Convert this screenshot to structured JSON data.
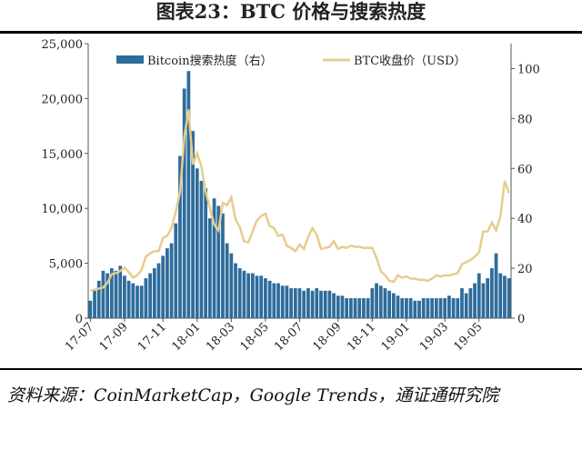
{
  "chart_data": {
    "type": "combo",
    "title": "图表23：BTC 价格与搜索热度",
    "source": "资料来源：CoinMarketCap，Google Trends，通证通研究院",
    "categories": [
      "17-07",
      null,
      null,
      null,
      null,
      null,
      null,
      null,
      "17-09",
      null,
      null,
      null,
      null,
      null,
      null,
      null,
      null,
      "17-11",
      null,
      null,
      null,
      null,
      null,
      null,
      null,
      "18-01",
      null,
      null,
      null,
      null,
      null,
      null,
      null,
      "18-03",
      null,
      null,
      null,
      null,
      null,
      null,
      null,
      "18-05",
      null,
      null,
      null,
      null,
      null,
      null,
      null,
      "18-07",
      null,
      null,
      null,
      null,
      null,
      null,
      null,
      null,
      "18-09",
      null,
      null,
      null,
      null,
      null,
      null,
      null,
      "18-11",
      null,
      null,
      null,
      null,
      null,
      null,
      null,
      "19-01",
      null,
      null,
      null,
      null,
      null,
      null,
      null,
      null,
      "19-03",
      null,
      null,
      null,
      null,
      null,
      null,
      null,
      "19-05",
      null,
      null,
      null,
      null,
      null,
      null,
      null
    ],
    "series": [
      {
        "name": "Bitcoin搜索热度（右）",
        "type": "bar",
        "axis": "y2",
        "color": "#2e6c9c",
        "values": [
          7,
          11,
          15,
          19,
          18,
          20,
          19,
          21,
          17,
          15,
          14,
          13,
          13,
          16,
          18,
          20,
          22,
          25,
          28,
          30,
          38,
          65,
          92,
          99,
          75,
          60,
          55,
          52,
          40,
          48,
          45,
          42,
          30,
          26,
          22,
          20,
          19,
          18,
          18,
          17,
          17,
          16,
          15,
          14,
          14,
          13,
          13,
          12,
          12,
          12,
          11,
          12,
          11,
          12,
          11,
          11,
          11,
          10,
          9,
          9,
          8,
          8,
          8,
          8,
          8,
          8,
          12,
          14,
          13,
          12,
          11,
          10,
          9,
          8,
          8,
          8,
          7,
          7,
          8,
          8,
          8,
          8,
          8,
          8,
          9,
          8,
          8,
          12,
          10,
          12,
          14,
          18,
          14,
          16,
          20,
          26,
          18,
          17,
          16
        ]
      },
      {
        "name": "BTC收盘价（USD）",
        "type": "line",
        "axis": "y",
        "color": "#e6cd8c",
        "values": [
          2500,
          2600,
          2700,
          2800,
          3200,
          4000,
          4100,
          4300,
          4600,
          4200,
          3700,
          3900,
          4400,
          5600,
          5900,
          6100,
          6100,
          7300,
          7500,
          8200,
          9700,
          11500,
          16500,
          19000,
          14000,
          15000,
          13800,
          11500,
          10000,
          8500,
          8000,
          10500,
          10300,
          11000,
          9000,
          8300,
          7000,
          6900,
          7900,
          8900,
          9300,
          9500,
          8400,
          8200,
          7500,
          7600,
          6600,
          6400,
          6100,
          6700,
          6300,
          7400,
          8200,
          7600,
          6300,
          6400,
          6500,
          7000,
          6300,
          6500,
          6400,
          6600,
          6500,
          6500,
          6400,
          6400,
          6400,
          5500,
          4300,
          3900,
          3400,
          3300,
          3900,
          3700,
          3800,
          3600,
          3600,
          3500,
          3500,
          3400,
          3600,
          3900,
          3800,
          3900,
          3900,
          4000,
          4100,
          4900,
          5100,
          5300,
          5600,
          6000,
          7900,
          7900,
          8700,
          8000,
          9300,
          12500,
          11400
        ]
      }
    ],
    "ylim": [
      0,
      25000
    ],
    "yticks": [
      0,
      {
        "value": 5000,
        "label": "5,000"
      },
      {
        "value": 10000,
        "label": "10,000"
      },
      {
        "value": 15000,
        "label": "15,000"
      },
      {
        "value": 20000,
        "label": "20,000"
      },
      {
        "value": 25000,
        "label": "25,000"
      }
    ],
    "y2lim": [
      0,
      110
    ],
    "y2ticks": [
      0,
      20,
      40,
      60,
      80,
      100
    ]
  }
}
